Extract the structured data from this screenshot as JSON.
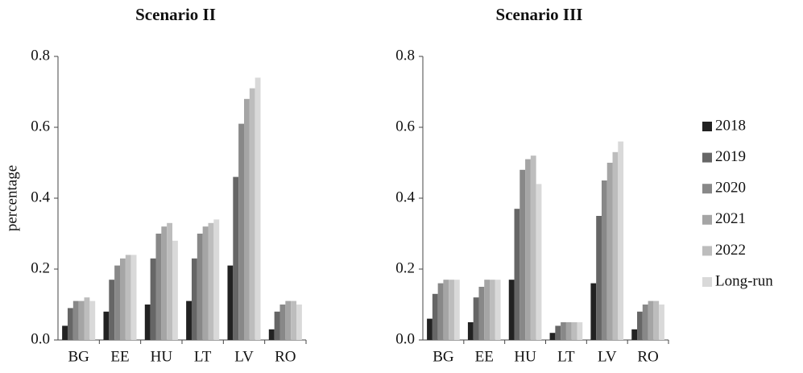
{
  "chart_data": [
    {
      "type": "bar",
      "title": "Scenario II",
      "ylabel": "percentage",
      "categories": [
        "BG",
        "EE",
        "HU",
        "LT",
        "LV",
        "RO"
      ],
      "series": [
        {
          "name": "2018",
          "color": "#222222",
          "values": [
            0.04,
            0.08,
            0.1,
            0.11,
            0.21,
            0.03
          ]
        },
        {
          "name": "2019",
          "color": "#666666",
          "values": [
            0.09,
            0.17,
            0.23,
            0.23,
            0.46,
            0.08
          ]
        },
        {
          "name": "2020",
          "color": "#888888",
          "values": [
            0.11,
            0.21,
            0.3,
            0.3,
            0.61,
            0.1
          ]
        },
        {
          "name": "2021",
          "color": "#a5a5a5",
          "values": [
            0.11,
            0.23,
            0.32,
            0.32,
            0.68,
            0.11
          ]
        },
        {
          "name": "2022",
          "color": "#bdbdbd",
          "values": [
            0.12,
            0.24,
            0.33,
            0.33,
            0.71,
            0.11
          ]
        },
        {
          "name": "Long-run",
          "color": "#d9d9d9",
          "values": [
            0.11,
            0.24,
            0.28,
            0.34,
            0.74,
            0.1
          ]
        }
      ],
      "ylim": [
        0,
        0.8
      ],
      "yticks": [
        {
          "value": 0,
          "label": "0.0"
        },
        0.2,
        0.4,
        0.6,
        0.8
      ]
    },
    {
      "type": "bar",
      "title": "Scenario III",
      "categories": [
        "BG",
        "EE",
        "HU",
        "LT",
        "LV",
        "RO"
      ],
      "series": [
        {
          "name": "2018",
          "color": "#222222",
          "values": [
            0.06,
            0.05,
            0.17,
            0.02,
            0.16,
            0.03
          ]
        },
        {
          "name": "2019",
          "color": "#666666",
          "values": [
            0.13,
            0.12,
            0.37,
            0.04,
            0.35,
            0.08
          ]
        },
        {
          "name": "2020",
          "color": "#888888",
          "values": [
            0.16,
            0.15,
            0.48,
            0.05,
            0.45,
            0.1
          ]
        },
        {
          "name": "2021",
          "color": "#a5a5a5",
          "values": [
            0.17,
            0.17,
            0.51,
            0.05,
            0.5,
            0.11
          ]
        },
        {
          "name": "2022",
          "color": "#bdbdbd",
          "values": [
            0.17,
            0.17,
            0.52,
            0.05,
            0.53,
            0.11
          ]
        },
        {
          "name": "Long-run",
          "color": "#d9d9d9",
          "values": [
            0.17,
            0.17,
            0.44,
            0.05,
            0.56,
            0.1
          ]
        }
      ],
      "ylim": [
        0,
        0.8
      ],
      "yticks": [
        {
          "value": 0,
          "label": "0.0"
        },
        0.2,
        0.4,
        0.6,
        0.8
      ],
      "legend": "right"
    }
  ]
}
